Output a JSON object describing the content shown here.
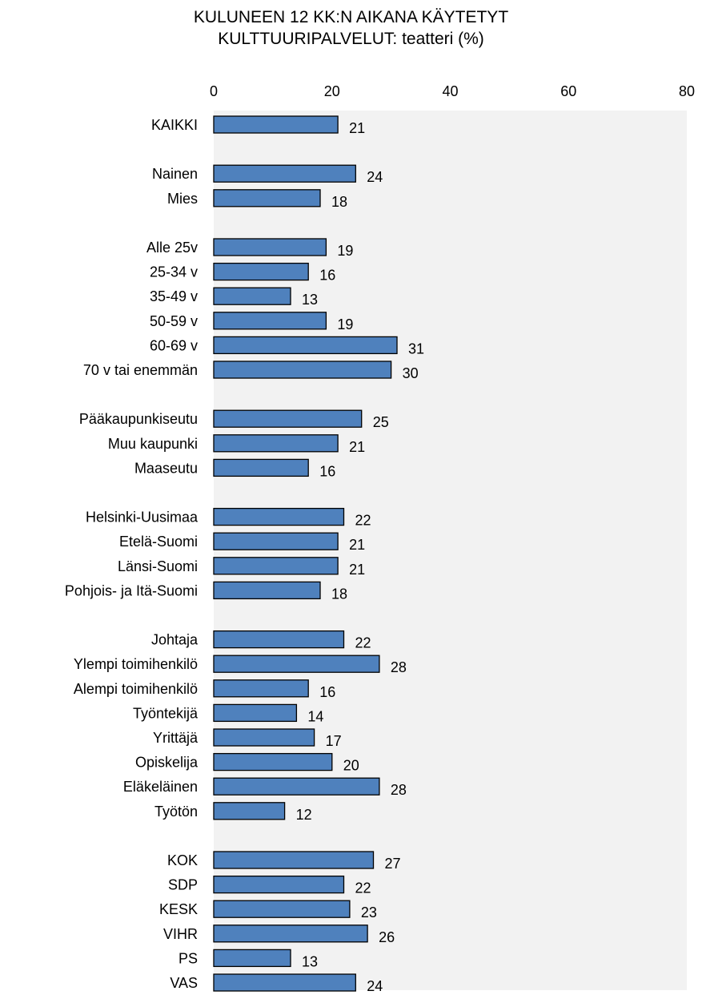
{
  "chart_data": {
    "type": "bar",
    "orientation": "horizontal",
    "title": [
      "KULUNEEN 12 KK:N AIKANA KÄYTETYT",
      "KULTTUURIPALVELUT: teatteri (%)"
    ],
    "xlim": [
      0,
      80
    ],
    "x_ticks": [
      0,
      20,
      40,
      60,
      80
    ],
    "x_axis_position": "top",
    "grid": false,
    "legend": "none",
    "colors": {
      "bar_fill": "#4f81bd",
      "bar_stroke": "#000000",
      "plot_background": "#f2f2f2"
    },
    "groups": [
      {
        "categories": [
          "KAIKKI"
        ],
        "values": [
          21
        ]
      },
      {
        "categories": [
          "Nainen",
          "Mies"
        ],
        "values": [
          24,
          18
        ]
      },
      {
        "categories": [
          "Alle 25v",
          "25-34 v",
          "35-49 v",
          "50-59 v",
          "60-69 v",
          "70 v  tai enemmän"
        ],
        "values": [
          19,
          16,
          13,
          19,
          31,
          30
        ]
      },
      {
        "categories": [
          "Pääkaupunkiseutu",
          "Muu kaupunki",
          "Maaseutu"
        ],
        "values": [
          25,
          21,
          16
        ]
      },
      {
        "categories": [
          "Helsinki-Uusimaa",
          "Etelä-Suomi",
          "Länsi-Suomi",
          "Pohjois- ja Itä-Suomi"
        ],
        "values": [
          22,
          21,
          21,
          18
        ]
      },
      {
        "categories": [
          "Johtaja",
          "Ylempi toimihenkilö",
          "Alempi toimihenkilö",
          "Työntekijä",
          "Yrittäjä",
          "Opiskelija",
          "Eläkeläinen",
          "Työtön"
        ],
        "values": [
          22,
          28,
          16,
          14,
          17,
          20,
          28,
          12
        ]
      },
      {
        "categories": [
          "KOK",
          "SDP",
          "KESK",
          "VIHR",
          "PS",
          "VAS"
        ],
        "values": [
          27,
          22,
          23,
          26,
          13,
          24
        ]
      }
    ]
  }
}
